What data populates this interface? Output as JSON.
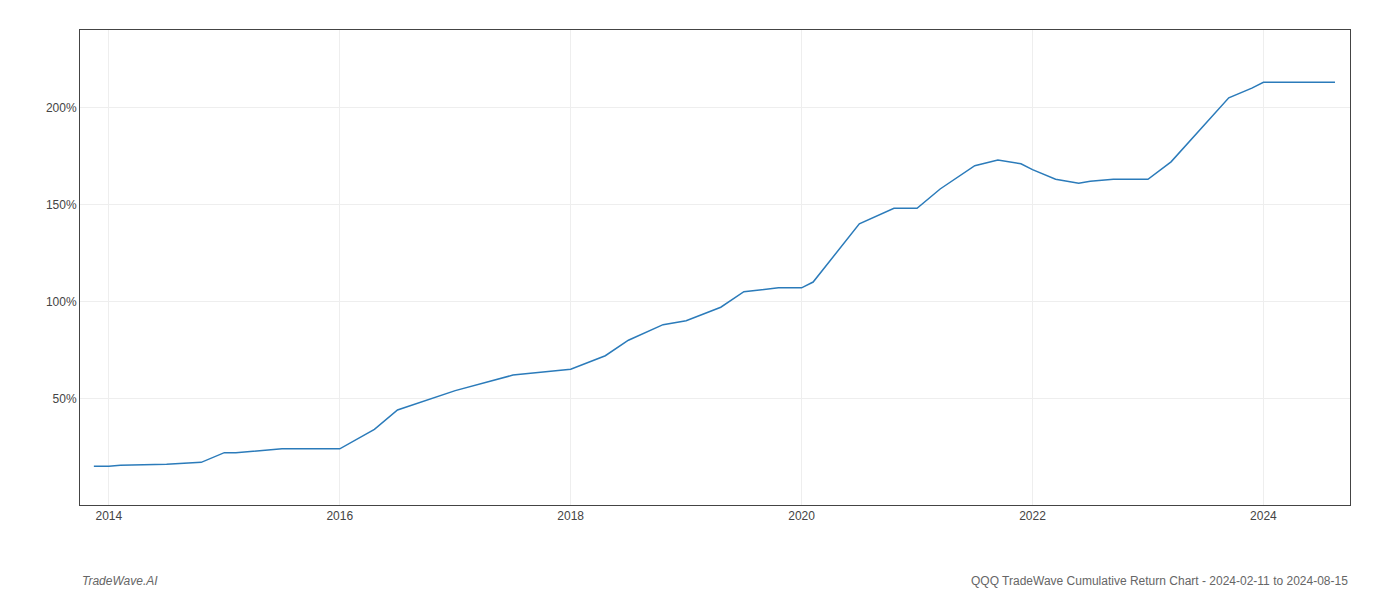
{
  "chart_data": {
    "type": "line",
    "annotations": [
      "TradeWave.AI",
      "QQQ TradeWave Cumulative Return Chart - 2024-02-11 to 2024-08-15"
    ],
    "x": [
      2013.87,
      2014.0,
      2014.1,
      2014.5,
      2014.8,
      2015.0,
      2015.1,
      2015.5,
      2016.0,
      2016.3,
      2016.5,
      2017.0,
      2017.5,
      2018.0,
      2018.3,
      2018.5,
      2018.8,
      2019.0,
      2019.3,
      2019.5,
      2019.8,
      2020.0,
      2020.1,
      2020.3,
      2020.5,
      2020.8,
      2021.0,
      2021.2,
      2021.5,
      2021.7,
      2021.9,
      2022.0,
      2022.2,
      2022.4,
      2022.5,
      2022.7,
      2022.9,
      2023.0,
      2023.2,
      2023.5,
      2023.7,
      2023.9,
      2024.0,
      2024.2,
      2024.5,
      2024.62
    ],
    "values": [
      15,
      15,
      15.5,
      16,
      17,
      22,
      22,
      24,
      24,
      34,
      44,
      54,
      62,
      65,
      72,
      80,
      88,
      90,
      97,
      105,
      107,
      107,
      110,
      125,
      140,
      148,
      148,
      158,
      170,
      173,
      171,
      168,
      163,
      161,
      162,
      163,
      163,
      163,
      172,
      192,
      205,
      210,
      213,
      213,
      213,
      213
    ],
    "color": "#2b7bba",
    "xlim": [
      2013.75,
      2024.75
    ],
    "ylim": [
      -5,
      240
    ],
    "xticks": [
      2014,
      2016,
      2018,
      2020,
      2022,
      2024
    ],
    "yticks": [
      {
        "value": 50,
        "label": "50%"
      },
      {
        "value": 100,
        "label": "100%"
      },
      {
        "value": 150,
        "label": "150%"
      },
      {
        "value": 200,
        "label": "200%"
      }
    ],
    "grid": true
  }
}
